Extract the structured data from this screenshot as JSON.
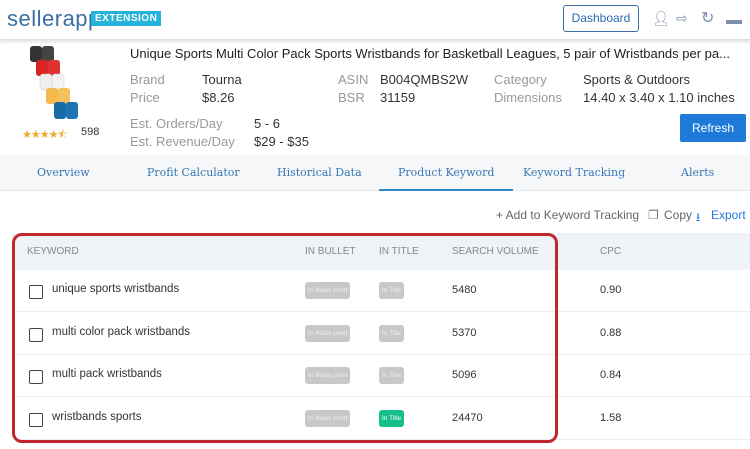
{
  "header": {
    "logo": "sellerapp",
    "badge": "EXTENSION",
    "dashboard": "Dashboard",
    "icons": [
      "user-icon",
      "sign-out-icon",
      "refresh-icon",
      "minimize-icon"
    ]
  },
  "product": {
    "title": "Unique Sports Multi Color Pack Sports Wristbands for Basketball Leagues, 5 pair of Wristbands per pa...",
    "rating": 4.5,
    "stars": "★★★★⯪",
    "reviews": "598",
    "brand_label": "Brand",
    "brand": "Tourna",
    "price_label": "Price",
    "price": "$8.26",
    "asin_label": "ASIN",
    "asin": "B004QMBS2W",
    "bsr_label": "BSR",
    "bsr": "31159",
    "category_label": "Category",
    "category": "Sports & Outdoors",
    "dimensions_label": "Dimensions",
    "dimensions": "14.40 x 3.40 x 1.10 inches",
    "orders_label": "Est. Orders/Day",
    "orders": "5 - 6",
    "revenue_label": "Est. Revenue/Day",
    "revenue": "$29 - $35",
    "refresh": "Refresh"
  },
  "tabs": [
    "Overview",
    "Profit Calculator",
    "Historical Data",
    "Product Keyword",
    "Keyword Tracking",
    "Alerts"
  ],
  "active_tab": "Product Keyword",
  "actions": {
    "add": "+ Add to Keyword Tracking",
    "copy": "Copy",
    "export": "Export"
  },
  "table": {
    "headers": [
      "KEYWORD",
      "IN BULLET",
      "IN TITLE",
      "SEARCH VOLUME",
      "CPC"
    ],
    "bullet_pill": "In Bullet point",
    "title_pill": "In Title",
    "rows": [
      {
        "keyword": "unique sports wristbands",
        "in_bullet": false,
        "in_title": false,
        "volume": "5480",
        "cpc": "0.90"
      },
      {
        "keyword": "multi color pack wristbands",
        "in_bullet": false,
        "in_title": false,
        "volume": "5370",
        "cpc": "0.88"
      },
      {
        "keyword": "multi pack wristbands",
        "in_bullet": false,
        "in_title": false,
        "volume": "5096",
        "cpc": "0.84"
      },
      {
        "keyword": "wristbands sports",
        "in_bullet": false,
        "in_title": true,
        "volume": "24470",
        "cpc": "1.58"
      }
    ]
  },
  "colors": {
    "accent": "#1e7ad8",
    "highlight": "#c1272d",
    "in_title_on": "#17c08a"
  }
}
